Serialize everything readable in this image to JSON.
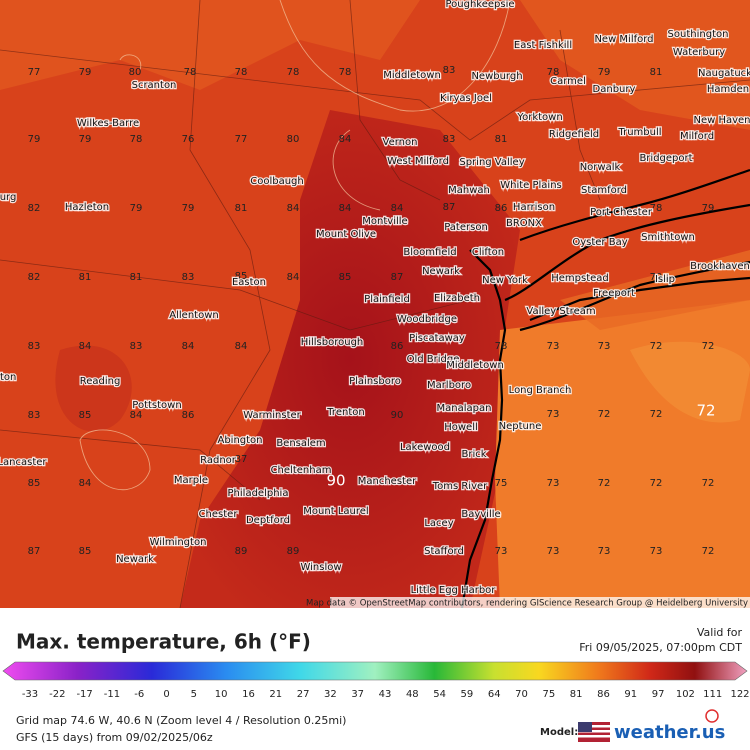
{
  "map": {
    "places": [
      "Poughkeepsie",
      "East Fishkill",
      "New Milford",
      "Southington",
      "Waterbury",
      "Naugatuck",
      "Hamden",
      "Middletown",
      "Newburgh",
      "Carmel",
      "Danbury",
      "Scranton",
      "Kiryas Joel",
      "Wilkes-Barre",
      "Yorktown",
      "Ridgefield",
      "Trumbull",
      "Milford",
      "New Haven",
      "Vernon",
      "West Milford",
      "Spring Valley",
      "Norwalk",
      "Bridgeport",
      "Coolbaugh",
      "White Plains",
      "Mahwah",
      "Stamford",
      "Hazleton",
      "Harrison",
      "Port Chester",
      "Montville",
      "Mount Olive",
      "Paterson",
      "BRONX",
      "Oyster Bay",
      "Smithtown",
      "Bloomfield",
      "Clifton",
      "Newark",
      "New York",
      "Hempstead",
      "Islip",
      "Brookhaven",
      "Easton",
      "Elizabeth",
      "Freeport",
      "Plainfield",
      "Valley Stream",
      "Allentown",
      "Woodbridge",
      "Piscataway",
      "Hillsborough",
      "Old Bridge",
      "Middletown",
      "Reading",
      "Plainsboro",
      "Marlboro",
      "Long Branch",
      "Pottstown",
      "Warminster",
      "Trenton",
      "Manalapan",
      "Neptune",
      "Howell",
      "Abington",
      "Bensalem",
      "Lakewood",
      "Lancaster",
      "Radnor",
      "Brick",
      "Cheltenham",
      "Manchester",
      "Marple",
      "Toms River",
      "Philadelphia",
      "Mount Laurel",
      "Chester",
      "Deptford",
      "Bayville",
      "Lacey",
      "Wilmington",
      "Stafford",
      "Newark",
      "Winslow",
      "Little Egg Harbor",
      "nton",
      "urg"
    ],
    "temperatures": [
      77,
      79,
      80,
      78,
      78,
      78,
      78,
      83,
      78,
      79,
      81,
      79,
      79,
      78,
      76,
      77,
      80,
      84,
      83,
      81,
      82,
      79,
      79,
      81,
      84,
      84,
      84,
      87,
      86,
      78,
      79,
      82,
      81,
      81,
      83,
      85,
      84,
      85,
      87,
      79,
      83,
      84,
      83,
      84,
      84,
      86,
      78,
      73,
      73,
      72,
      72,
      83,
      85,
      84,
      86,
      90,
      73,
      72,
      72,
      72,
      85,
      84,
      87,
      90,
      75,
      73,
      72,
      72,
      72,
      87,
      85,
      89,
      89,
      73,
      73,
      73,
      73,
      72
    ],
    "attribution": "Map data © OpenStreetMap contributors, rendering GIScience Research Group @ Heidelberg University"
  },
  "footer": {
    "title": "Max. temperature, 6h (°F)",
    "valid_label": "Valid for",
    "valid_time": "Fri 09/05/2025, 07:00pm CDT",
    "scale": [
      -33,
      -22,
      -17,
      -11,
      -6,
      0,
      5,
      10,
      16,
      21,
      27,
      32,
      37,
      43,
      48,
      54,
      59,
      64,
      70,
      75,
      81,
      86,
      91,
      97,
      102,
      111,
      122
    ],
    "grid_info": "Grid map 74.6 W, 40.6 N (Zoom level 4 / Resolution 0.25mi)",
    "run_info": "GFS (15 days) from 09/02/2025/06z",
    "model_label": "Model:",
    "brand": "weather.us"
  }
}
